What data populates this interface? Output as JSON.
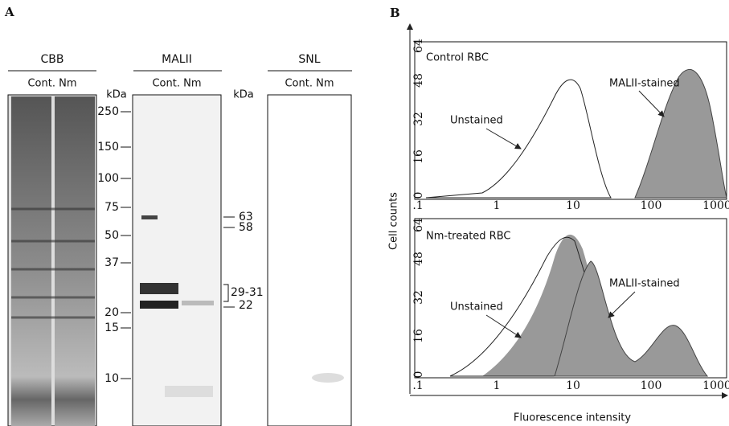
{
  "panel_a": {
    "label": "A",
    "gels": [
      {
        "title": "CBB",
        "lanes": "Cont. Nm"
      },
      {
        "title": "MALII",
        "lanes": "Cont. Nm"
      },
      {
        "title": "SNL",
        "lanes": "Cont. Nm"
      }
    ],
    "marker_unit": "kDa",
    "markers": [
      "250",
      "150",
      "100",
      "75",
      "50",
      "37",
      "20",
      "15",
      "10"
    ],
    "band_unit": "kDa",
    "bands": [
      "63",
      "58",
      "29-31",
      "22"
    ]
  },
  "panel_b": {
    "label": "B",
    "y_axis_label": "Cell counts",
    "x_axis_label": "Fluorescence intensity",
    "x_ticks": [
      ".1",
      "1",
      "10",
      "100",
      "1000"
    ],
    "y_ticks": [
      "0",
      "16",
      "32",
      "48",
      "64"
    ],
    "plots": [
      {
        "title": "Control RBC",
        "unstained": "Unstained",
        "stained": "MALII-stained"
      },
      {
        "title": "Nm-treated RBC",
        "unstained": "Unstained",
        "stained": "MALII-stained"
      }
    ]
  }
}
